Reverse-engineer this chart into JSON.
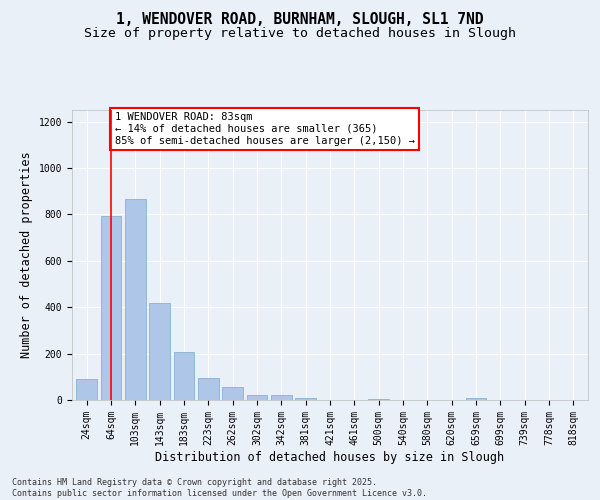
{
  "title_line1": "1, WENDOVER ROAD, BURNHAM, SLOUGH, SL1 7ND",
  "title_line2": "Size of property relative to detached houses in Slough",
  "xlabel": "Distribution of detached houses by size in Slough",
  "ylabel": "Number of detached properties",
  "categories": [
    "24sqm",
    "64sqm",
    "103sqm",
    "143sqm",
    "183sqm",
    "223sqm",
    "262sqm",
    "302sqm",
    "342sqm",
    "381sqm",
    "421sqm",
    "461sqm",
    "500sqm",
    "540sqm",
    "580sqm",
    "620sqm",
    "659sqm",
    "699sqm",
    "739sqm",
    "778sqm",
    "818sqm"
  ],
  "values": [
    90,
    793,
    868,
    420,
    207,
    93,
    55,
    20,
    20,
    10,
    0,
    0,
    5,
    0,
    0,
    0,
    10,
    0,
    0,
    0,
    0
  ],
  "bar_color": "#aec6e8",
  "bar_edge_color": "#7aa8d0",
  "vline_x": 1,
  "vline_color": "red",
  "annotation_text": "1 WENDOVER ROAD: 83sqm\n← 14% of detached houses are smaller (365)\n85% of semi-detached houses are larger (2,150) →",
  "annotation_box_color": "white",
  "annotation_box_edge_color": "red",
  "ylim": [
    0,
    1250
  ],
  "yticks": [
    0,
    200,
    400,
    600,
    800,
    1000,
    1200
  ],
  "background_color": "#eaf0f8",
  "grid_color": "white",
  "footer": "Contains HM Land Registry data © Crown copyright and database right 2025.\nContains public sector information licensed under the Open Government Licence v3.0.",
  "title_fontsize": 10.5,
  "subtitle_fontsize": 9.5,
  "axis_label_fontsize": 8.5,
  "tick_fontsize": 7,
  "annotation_fontsize": 7.5,
  "footer_fontsize": 6
}
